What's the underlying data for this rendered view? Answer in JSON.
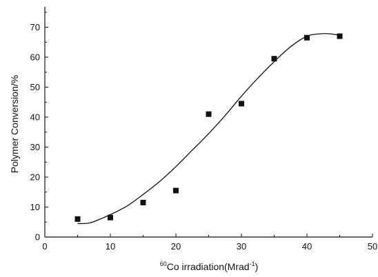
{
  "chart_data": {
    "type": "scatter",
    "title": "",
    "xlabel_superscript": "60",
    "xlabel_main": "Co irradiation(Mrad",
    "xlabel_unit_superscript": "-1",
    "xlabel_close": ")",
    "ylabel": "Polymer Conversion/%",
    "xlim": [
      0,
      50
    ],
    "ylim": [
      0,
      75
    ],
    "xticks": [
      0,
      10,
      20,
      30,
      40,
      50
    ],
    "yticks": [
      0,
      10,
      20,
      30,
      40,
      50,
      60,
      70
    ],
    "grid": false,
    "legend": "none",
    "series": [
      {
        "marker": "square",
        "x": [
          5,
          10,
          15,
          20,
          25,
          30,
          35,
          40,
          45
        ],
        "y": [
          6,
          6.5,
          11.5,
          15.5,
          41,
          44.5,
          59.5,
          66.5,
          67
        ]
      }
    ],
    "fit_curve": {
      "style": "line",
      "x": [
        5,
        7,
        10,
        12.5,
        15,
        17.5,
        20,
        22.5,
        25,
        27.5,
        30,
        32.5,
        35,
        37.5,
        40,
        42,
        43.5,
        45
      ],
      "y": [
        4.5,
        4.8,
        7.5,
        10.3,
        14.2,
        18.5,
        23.5,
        29,
        34.5,
        40.5,
        47,
        53,
        58.5,
        63.5,
        67,
        67.8,
        67.8,
        67.3
      ]
    }
  },
  "colors": {
    "ink": "#111111",
    "background": "#ffffff"
  }
}
